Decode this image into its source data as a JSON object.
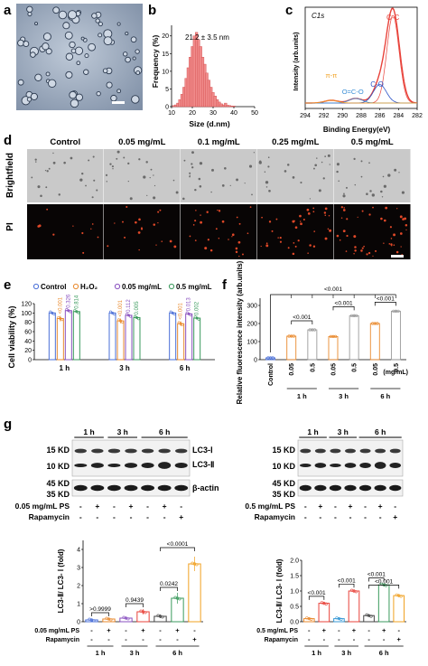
{
  "panel_labels": {
    "a": "a",
    "b": "b",
    "c": "c",
    "d": "d",
    "e": "e",
    "f": "f",
    "g": "g"
  },
  "panel_b": {
    "annotation": "21.2 ± 3.5 nm",
    "xlabel": "Size (d.nm)",
    "ylabel": "Frequency (%)",
    "x_ticks": [
      "10",
      "20",
      "30",
      "40",
      "50"
    ],
    "y_ticks": [
      "0",
      "5",
      "10",
      "15",
      "20"
    ]
  },
  "panel_c": {
    "tag": "C1s",
    "xlabel": "Binding Energy(eV)",
    "ylabel": "Intensity  (arb.units)",
    "x_ticks": [
      "294",
      "292",
      "290",
      "288",
      "286",
      "284",
      "282"
    ],
    "peaks": {
      "cc": "C-C",
      "co": "C-O",
      "oco": "O=C-O",
      "pipi": "π-π"
    },
    "colors": {
      "main": "#e8423a",
      "cc": "#e8423a",
      "co": "#2e55c8",
      "oco": "#3a8fd6",
      "pipi": "#f0a020"
    }
  },
  "panel_d": {
    "columns": [
      "Control",
      "0.05 mg/mL",
      "0.1 mg/mL",
      "0.25 mg/mL",
      "0.5 mg/mL"
    ],
    "rows": [
      "Brightfield",
      "PI"
    ]
  },
  "panel_e": {
    "legend": [
      "Control",
      "H₂O₂",
      "0.05 mg/mL",
      "0.5 mg/mL"
    ],
    "ylabel": "Cell viability (%)",
    "y_ticks": [
      "0",
      "20",
      "40",
      "60",
      "80",
      "100",
      "120"
    ],
    "groups": [
      "1 h",
      "3 h",
      "6 h"
    ],
    "pvalues": [
      [
        "<0.001",
        "0.326",
        "0.814"
      ],
      [
        "<0.001",
        "0.112",
        "0.005"
      ],
      [
        "<0.001",
        "0.013",
        "0.002"
      ]
    ]
  },
  "panel_f": {
    "ylabel": "Relative fluorescence intensity (arb.units)",
    "y_ticks": [
      "0",
      "100",
      "200",
      "300"
    ],
    "x_labels": [
      "Control",
      "0.05",
      "0.5",
      "0.05",
      "0.5",
      "0.05",
      "0.5"
    ],
    "unit": "(mg/mL)",
    "groups": [
      "1 h",
      "3 h",
      "6 h"
    ],
    "pvalues": [
      "<0.001",
      "<0.001",
      "<0.001",
      "<0.001"
    ]
  },
  "panel_g_left": {
    "kd": [
      "15 KD",
      "10 KD",
      "45 KD",
      "35 KD"
    ],
    "times": [
      "1 h",
      "3 h",
      "6 h"
    ],
    "bands": [
      "LC3-Ⅰ",
      "LC3-Ⅱ",
      "β-actin"
    ],
    "row1_label": "0.05 mg/mL PS",
    "row1_signs": [
      "-",
      "+",
      "-",
      "+",
      "-",
      "+",
      "-"
    ],
    "row2_label": "Rapamycin",
    "row2_signs": [
      "-",
      "-",
      "-",
      "-",
      "-",
      "-",
      "+"
    ]
  },
  "panel_g_right": {
    "kd": [
      "15 KD",
      "10 KD",
      "45 KD",
      "35 KD"
    ],
    "times": [
      "1 h",
      "3 h",
      "6 h"
    ],
    "row1_label": "0.5 mg/mL PS",
    "row1_signs": [
      "-",
      "+",
      "-",
      "+",
      "-",
      "+",
      "-"
    ],
    "row2_label": "Rapamycin",
    "row2_signs": [
      "-",
      "-",
      "-",
      "-",
      "-",
      "-",
      "+"
    ]
  },
  "panel_g_left_chart": {
    "ylabel": "LC3-Ⅱ/ LC3- Ⅰ (fold)",
    "y_ticks": [
      "0",
      "1",
      "2",
      "3",
      "4"
    ],
    "pvalues": [
      ">0.9999",
      "0.9439",
      "0.0242",
      "<0.0001"
    ],
    "row1_label": "0.05 mg/mL PS",
    "row1_signs": [
      "-",
      "+",
      "-",
      "+",
      "-",
      "+",
      "-"
    ],
    "row2_label": "Rapamycin",
    "row2_signs": [
      "-",
      "-",
      "-",
      "-",
      "-",
      "-",
      "+"
    ],
    "times": [
      "1 h",
      "3 h",
      "6 h"
    ]
  },
  "panel_g_right_chart": {
    "ylabel": "LC3-Ⅱ/ LC3- Ⅰ (fold)",
    "y_ticks": [
      "0.0",
      "0.5",
      "1.0",
      "1.5",
      "2.0"
    ],
    "pvalues": [
      "<0.001",
      "<0.001",
      "<0.001",
      "<0.001"
    ],
    "row1_label": "0.5 mg/mL PS",
    "row1_signs": [
      "-",
      "+",
      "-",
      "+",
      "-",
      "+",
      "-"
    ],
    "row2_label": "Rapamycin",
    "row2_signs": [
      "-",
      "-",
      "-",
      "-",
      "-",
      "-",
      "+"
    ],
    "times": [
      "1 h",
      "3 h",
      "6 h"
    ]
  },
  "chart_data": [
    {
      "type": "bar",
      "categories": [
        "11",
        "12",
        "13",
        "14",
        "15",
        "16",
        "17",
        "18",
        "19",
        "20",
        "21",
        "22",
        "23",
        "24",
        "25",
        "26",
        "27",
        "28",
        "29",
        "30",
        "31",
        "32",
        "33",
        "34",
        "35",
        "36",
        "37",
        "38",
        "39",
        "40"
      ],
      "values": [
        0.3,
        0.5,
        1,
        2,
        3.5,
        5.5,
        8,
        11,
        14,
        17,
        20,
        21,
        19,
        17,
        14,
        12,
        9.5,
        7.5,
        5.5,
        4,
        3,
        2,
        1.3,
        0.8,
        0.5,
        1,
        0.4,
        0.3,
        0.2,
        0.2
      ],
      "xlabel": "Size (d.nm)",
      "ylabel": "Frequency (%)",
      "xlim": [
        10,
        50
      ],
      "ylim": [
        0,
        23
      ]
    },
    {
      "type": "line",
      "xlabel": "Binding Energy(eV)",
      "ylabel": "Intensity  (arb.units)",
      "xlim": [
        294,
        282
      ],
      "series": [
        {
          "name": "C-C",
          "center": 284.6,
          "height": 1.0
        },
        {
          "name": "C-O",
          "center": 286.0,
          "height": 0.2
        },
        {
          "name": "O=C-O",
          "center": 288.6,
          "height": 0.05
        },
        {
          "name": "π-π",
          "center": 291.2,
          "height": 0.03
        }
      ]
    },
    {
      "type": "bar",
      "categories": [
        "1 h",
        "3 h",
        "6 h"
      ],
      "series": [
        {
          "name": "Control",
          "values": [
            100,
            100,
            100
          ],
          "err": [
            2,
            2,
            2
          ],
          "color": "#4a6fd8"
        },
        {
          "name": "H₂O₂",
          "values": [
            88,
            83,
            77
          ],
          "err": [
            6,
            5,
            5
          ],
          "color": "#e98a2e"
        },
        {
          "name": "0.05 mg/mL",
          "values": [
            105,
            95,
            98
          ],
          "err": [
            2,
            2,
            2
          ],
          "color": "#8a52c0"
        },
        {
          "name": "0.5 mg/mL",
          "values": [
            103,
            90,
            89
          ],
          "err": [
            2,
            2,
            2
          ],
          "color": "#3a9a5c"
        }
      ],
      "ylabel": "Cell viability (%)",
      "ylim": [
        0,
        120
      ]
    },
    {
      "type": "bar",
      "categories": [
        "Control",
        "0.05",
        "0.5",
        "0.05",
        "0.5",
        "0.05",
        "0.5"
      ],
      "values": [
        10,
        130,
        165,
        128,
        243,
        200,
        268
      ],
      "err": [
        3,
        5,
        6,
        5,
        8,
        6,
        8
      ],
      "colors": [
        "#4a6fd8",
        "#e98a2e",
        "#9a9a9a",
        "#e98a2e",
        "#9a9a9a",
        "#e98a2e",
        "#9a9a9a"
      ],
      "ylabel": "Relative fluorescence intensity (arb.units)",
      "ylim": [
        0,
        300
      ]
    },
    {
      "type": "bar",
      "categories": [
        "1",
        "2",
        "3",
        "4",
        "5",
        "6",
        "7"
      ],
      "values": [
        0.1,
        0.15,
        0.2,
        0.55,
        0.3,
        1.3,
        3.2
      ],
      "err": [
        0.05,
        0.05,
        0.05,
        0.15,
        0.1,
        0.3,
        0.4
      ],
      "colors": [
        "#4a6fd8",
        "#e98a2e",
        "#8a52c0",
        "#e8423a",
        "#444444",
        "#3a9a5c",
        "#f0a020"
      ],
      "ylabel": "LC3-Ⅱ/ LC3- Ⅰ (fold)",
      "ylim": [
        0,
        4.5
      ]
    },
    {
      "type": "bar",
      "categories": [
        "1",
        "2",
        "3",
        "4",
        "5",
        "6",
        "7"
      ],
      "values": [
        0.1,
        0.6,
        0.1,
        1.0,
        0.2,
        1.2,
        0.85
      ],
      "err": [
        0.04,
        0.05,
        0.04,
        0.05,
        0.04,
        0.05,
        0.05
      ],
      "colors": [
        "#e98a2e",
        "#e8423a",
        "#3a9ad6",
        "#e8423a",
        "#444444",
        "#3a9a5c",
        "#f0a020"
      ],
      "ylabel": "LC3-Ⅱ/ LC3- Ⅰ (fold)",
      "ylim": [
        0,
        2
      ]
    }
  ]
}
